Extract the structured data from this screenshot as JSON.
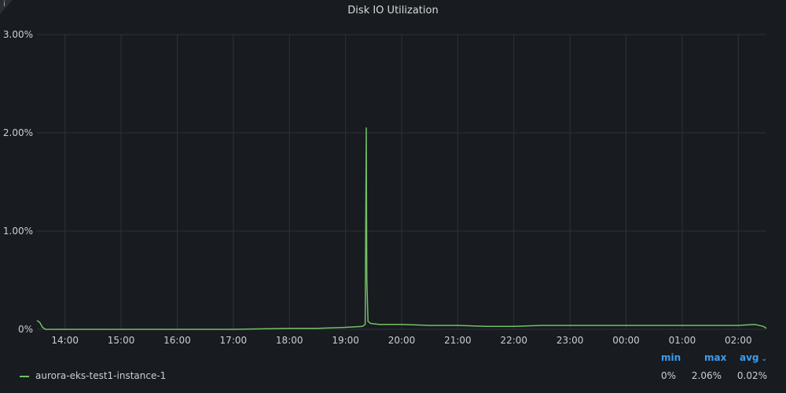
{
  "panel": {
    "title": "Disk IO Utilization",
    "info_icon_glyph": "i"
  },
  "legend": {
    "headers": {
      "min": "min",
      "max": "max",
      "avg": "avg",
      "sort_indicator": "⌄"
    },
    "series": [
      {
        "name": "aurora-eks-test1-instance-1",
        "color": "#73bf69",
        "min": "0%",
        "max": "2.06%",
        "avg": "0.02%"
      }
    ]
  },
  "chart_data": {
    "type": "line",
    "title": "Disk IO Utilization",
    "xlabel": "",
    "ylabel": "",
    "y_ticks": [
      "0%",
      "1.00%",
      "2.00%",
      "3.00%"
    ],
    "ylim": [
      0,
      3
    ],
    "x_ticks": [
      "14:00",
      "15:00",
      "16:00",
      "17:00",
      "18:00",
      "19:00",
      "20:00",
      "21:00",
      "22:00",
      "23:00",
      "00:00",
      "01:00",
      "02:00"
    ],
    "xlim_hours": [
      13.5,
      26.5
    ],
    "grid": true,
    "legend_position": "bottom",
    "series": [
      {
        "name": "aurora-eks-test1-instance-1",
        "color": "#73bf69",
        "x": [
          13.5,
          13.55,
          13.6,
          13.65,
          14.0,
          15.0,
          16.0,
          17.0,
          18.0,
          18.5,
          19.0,
          19.3,
          19.35,
          19.37,
          19.38,
          19.4,
          19.45,
          19.6,
          20.0,
          20.5,
          21.0,
          21.5,
          22.0,
          22.5,
          23.0,
          23.5,
          24.0,
          24.5,
          25.0,
          25.5,
          26.0,
          26.3,
          26.45,
          26.5
        ],
        "y": [
          0.09,
          0.07,
          0.02,
          0.0,
          0.0,
          0.0,
          0.0,
          0.0,
          0.01,
          0.01,
          0.02,
          0.03,
          0.05,
          2.05,
          0.5,
          0.08,
          0.06,
          0.05,
          0.05,
          0.04,
          0.04,
          0.03,
          0.03,
          0.04,
          0.04,
          0.04,
          0.04,
          0.04,
          0.04,
          0.04,
          0.04,
          0.05,
          0.03,
          0.01
        ]
      }
    ]
  }
}
